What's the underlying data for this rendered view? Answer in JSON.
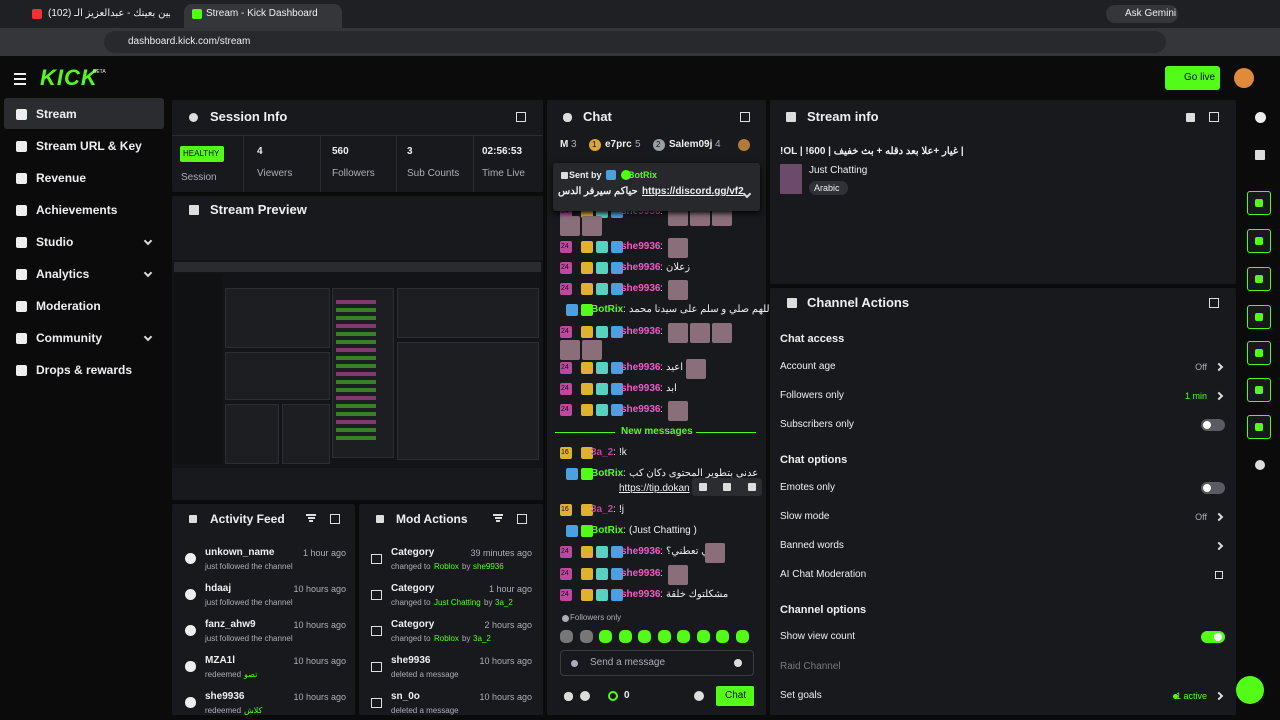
{
  "browser": {
    "tabs": [
      "(102) مايين بعينك - عبدالعزيز الـ",
      "Stream - Kick Dashboard"
    ],
    "ask": "Ask Gemini",
    "url": "dashboard.kick.com/stream"
  },
  "header": {
    "logo": "KICK",
    "badge": "BETA",
    "go_live": "Go live"
  },
  "sidebar": [
    {
      "label": "Stream",
      "active": true
    },
    {
      "label": "Stream URL & Key"
    },
    {
      "label": "Revenue"
    },
    {
      "label": "Achievements"
    },
    {
      "label": "Studio",
      "expandable": true
    },
    {
      "label": "Analytics",
      "expandable": true
    },
    {
      "label": "Moderation"
    },
    {
      "label": "Community",
      "expandable": true
    },
    {
      "label": "Drops & rewards"
    }
  ],
  "session": {
    "title": "Session Info",
    "status": "HEALTHY",
    "status_label": "Session",
    "stats": [
      {
        "value": 4,
        "label": "Viewers"
      },
      {
        "value": 560,
        "label": "Followers"
      },
      {
        "value": 3,
        "label": "Sub Counts"
      },
      {
        "value": "02:56:53",
        "label": "Time Live"
      }
    ]
  },
  "preview": {
    "title": "Stream Preview"
  },
  "activity": {
    "title": "Activity Feed",
    "items": [
      {
        "user": "unkown_name",
        "time": "1 hour ago",
        "text": "just followed the channel"
      },
      {
        "user": "hdaaj",
        "time": "10 hours ago",
        "text": "just followed the channel"
      },
      {
        "user": "fanz_ahw9",
        "time": "10 hours ago",
        "text": "just followed the channel"
      },
      {
        "user": "MZA1l",
        "time": "10 hours ago",
        "text": "redeemed",
        "reward": "تصو"
      },
      {
        "user": "she9936",
        "time": "10 hours ago",
        "text": "redeemed",
        "reward": "كلاش"
      }
    ]
  },
  "mod_actions": {
    "title": "Mod Actions",
    "items": [
      {
        "title": "Category",
        "time": "39 minutes ago",
        "text": "changed to",
        "target": "Roblox",
        "by": "by",
        "user": "she9936"
      },
      {
        "title": "Category",
        "time": "1 hour ago",
        "text": "changed to",
        "target": "Just Chatting",
        "by": "by",
        "user": "3a_2"
      },
      {
        "title": "Category",
        "time": "2 hours ago",
        "text": "changed to",
        "target": "Roblox",
        "by": "by",
        "user": "3a_2"
      },
      {
        "title": "she9936",
        "time": "10 hours ago",
        "text": "deleted a message"
      },
      {
        "title": "sn_0o",
        "time": "10 hours ago",
        "text": "deleted a message"
      }
    ]
  },
  "chat": {
    "title": "Chat",
    "sep": ":",
    "top": [
      {
        "name": "M",
        "count": 3
      },
      {
        "name": "e7prc",
        "count": 5,
        "rank": 1
      },
      {
        "name": "Salem09j",
        "count": 4,
        "rank": 2
      }
    ],
    "pinned": {
      "label": "Sent by",
      "user": "BotRix",
      "text": "حياكم سيرفر الدس",
      "link": "https://discord.gg/vf2"
    },
    "messages": [
      {
        "badge": 24,
        "user": "she9936",
        "color": "#f25ac9"
      },
      {
        "badge": 24,
        "user": "she9936",
        "color": "#f25ac9"
      },
      {
        "badge": 24,
        "user": "she9936",
        "color": "#f25ac9",
        "text": "زعلان"
      },
      {
        "badge": 24,
        "user": "she9936",
        "color": "#f25ac9"
      },
      {
        "user": "BotRix",
        "color": "#53fc18",
        "text": "اللهم صلي و سلم على سيدنا محمد"
      },
      {
        "badge": 24,
        "user": "she9936",
        "color": "#f25ac9"
      },
      {
        "badge": 24,
        "user": "she9936",
        "color": "#f25ac9",
        "text": "اعيد"
      },
      {
        "badge": 24,
        "user": "she9936",
        "color": "#f25ac9",
        "text": "ابد"
      },
      {
        "badge": 24,
        "user": "she9936",
        "color": "#f25ac9"
      },
      {
        "badge": 16,
        "user": "3a_2",
        "color": "#c0479f",
        "text": "!k"
      },
      {
        "user": "BotRix",
        "color": "#53fc18",
        "text": "اللي حابب يدعمني ويساعدني بتطوير المحتوى دكان كب",
        "link": "https://tip.dokan"
      },
      {
        "badge": 16,
        "user": "3a_2",
        "color": "#c0479f",
        "text": "!j"
      },
      {
        "user": "BotRix",
        "color": "#53fc18",
        "text": "(Just Chatting )"
      },
      {
        "badge": 24,
        "user": "she9936",
        "color": "#f25ac9",
        "text": "كي تعطني؟"
      },
      {
        "badge": 24,
        "user": "she9936",
        "color": "#f25ac9"
      },
      {
        "badge": 24,
        "user": "she9936",
        "color": "#f25ac9",
        "text": "مشكلتوك خلقة"
      }
    ],
    "new_messages": "New messages",
    "followers_only": "Followers only",
    "input": "Send a message",
    "count": 0,
    "send": "Chat"
  },
  "stream_info": {
    "title": "Stream info",
    "stream_title": "!OL | !600 | غيار +علا بعد دقله + بث خفيف |",
    "category": "Just Chatting",
    "tag": "Arabic"
  },
  "channel_actions": {
    "title": "Channel Actions",
    "sections": [
      {
        "heading": "Chat access",
        "rows": [
          {
            "label": "Account age",
            "value": "Off"
          },
          {
            "label": "Followers only",
            "value": "1 min",
            "accent": true
          },
          {
            "label": "Subscribers only",
            "toggle": false
          }
        ]
      },
      {
        "heading": "Chat options",
        "rows": [
          {
            "label": "Emotes only",
            "toggle": false
          },
          {
            "label": "Slow mode",
            "value": "Off"
          },
          {
            "label": "Banned words"
          },
          {
            "label": "AI Chat Moderation"
          }
        ]
      },
      {
        "heading": "Channel options",
        "rows": [
          {
            "label": "Show view count",
            "toggle": true
          },
          {
            "label": "Raid Channel",
            "disabled": true
          },
          {
            "label": "Set goals",
            "value": "1 active",
            "accent": true
          }
        ]
      }
    ]
  }
}
